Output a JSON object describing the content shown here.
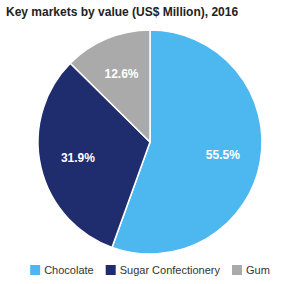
{
  "chart_data": {
    "type": "pie",
    "title": "Key markets by value (US$ Million), 2016",
    "categories": [
      "Chocolate",
      "Sugar Confectionery",
      "Gum"
    ],
    "values": [
      55.5,
      31.9,
      12.6
    ],
    "value_labels": [
      "55.5%",
      "31.9%",
      "12.6%"
    ],
    "colors": [
      "#4db8f0",
      "#1f2d6e",
      "#aaaaaa"
    ],
    "data_labels": true,
    "legend": "bottom"
  }
}
